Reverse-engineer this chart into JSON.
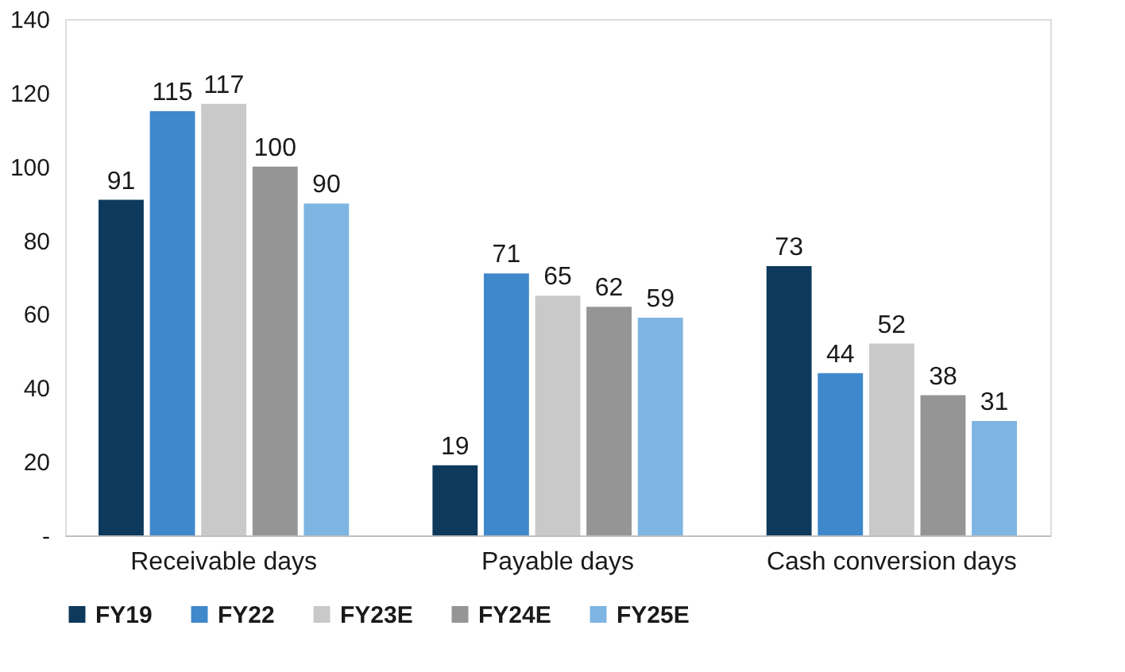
{
  "chart_data": {
    "type": "bar",
    "categories": [
      "Receivable days",
      "Payable days",
      "Cash conversion days"
    ],
    "series": [
      {
        "name": "FY19",
        "color": "#0d3a5c",
        "values": [
          91,
          19,
          73
        ]
      },
      {
        "name": "FY22",
        "color": "#3f88cb",
        "values": [
          115,
          71,
          44
        ]
      },
      {
        "name": "FY23E",
        "color": "#c9c9c9",
        "values": [
          117,
          65,
          52
        ]
      },
      {
        "name": "FY24E",
        "color": "#959595",
        "values": [
          100,
          62,
          38
        ]
      },
      {
        "name": "FY25E",
        "color": "#7eb5e2",
        "values": [
          90,
          59,
          31
        ]
      }
    ],
    "ylim": [
      0,
      140
    ],
    "yticks": [
      {
        "value": 0,
        "label": "-"
      },
      20,
      40,
      60,
      80,
      100,
      120,
      140
    ],
    "data_labels": true,
    "grid": false,
    "legend": "bottom"
  }
}
